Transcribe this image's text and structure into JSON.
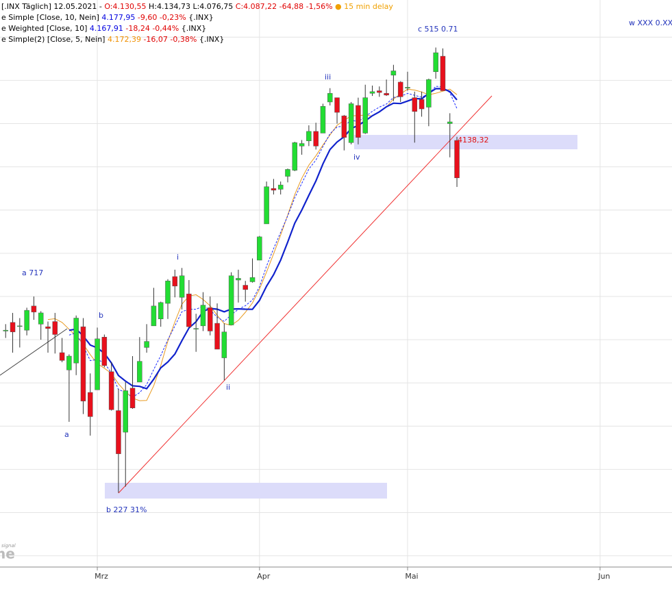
{
  "chart_data": {
    "type": "candlestick",
    "legend": [
      [
        {
          "text": "[.INX Täglich] 12.05.2021 -",
          "color": "#000000"
        },
        {
          "text": "O:4.130,55",
          "color": "#e00000"
        },
        {
          "text": "H:4.134,73",
          "color": "#000000"
        },
        {
          "text": "L:4.076,75",
          "color": "#000000"
        },
        {
          "text": "C:4.087,22 -64,88 -1,56%",
          "color": "#e00000"
        },
        {
          "text": "● 15 min delay",
          "color": "#f0a000"
        }
      ],
      [
        {
          "text": "e Simple [Close, 10, Nein]",
          "color": "#000000"
        },
        {
          "text": "4.177,95",
          "color": "#0000e0"
        },
        {
          "text": "-9,60 -0,23%",
          "color": "#e00000"
        },
        {
          "text": "{.INX}",
          "color": "#000000"
        }
      ],
      [
        {
          "text": "e Weighted [Close, 10]",
          "color": "#000000"
        },
        {
          "text": "4.167,91",
          "color": "#0000e0"
        },
        {
          "text": "-18,24 -0,44%",
          "color": "#e00000"
        },
        {
          "text": "{.INX}",
          "color": "#000000"
        }
      ],
      [
        {
          "text": "e Simple(2) [Close, 5, Nein]",
          "color": "#000000"
        },
        {
          "text": "4.172,39",
          "color": "#f09000"
        },
        {
          "text": "-16,07 -0,38%",
          "color": "#e00000"
        },
        {
          "text": "{.INX}",
          "color": "#000000"
        }
      ]
    ],
    "annotations": [
      "a 717",
      "b",
      "a",
      "b 227 31%",
      "i",
      "ii",
      "iii",
      "iv",
      "c 515 0.71",
      "w XXX 0.XX"
    ],
    "level_label": "4138,32",
    "watermark": [
      "signal",
      "ne"
    ],
    "open": [
      3910,
      3920,
      3916,
      3911,
      3939,
      3918,
      3915,
      3921,
      3885,
      3865,
      3873,
      3915,
      3839,
      3842,
      3903,
      3863,
      3818,
      3793,
      3844,
      3851,
      3891,
      3916,
      3924,
      3942,
      3973,
      3949,
      3953,
      3913,
      3916,
      3937,
      3919,
      3879,
      3917,
      3969,
      3963,
      3967,
      3992,
      4034,
      4075,
      4074,
      4089,
      4096,
      4124,
      4130,
      4141,
      4139,
      4175,
      4180,
      4159,
      4128,
      4171,
      4139,
      4185,
      4188,
      4185,
      4206,
      4198,
      4191,
      4180,
      4178,
      4169,
      4210,
      4228,
      4150,
      4130.55
    ],
    "high": [
      3918,
      3931,
      3925,
      3937,
      3950,
      3933,
      3921,
      3931,
      3902,
      3883,
      3928,
      3925,
      3861,
      3914,
      3906,
      3874,
      3843,
      3851,
      3881,
      3903,
      3918,
      3960,
      3944,
      3970,
      3981,
      3983,
      3969,
      3930,
      3955,
      3950,
      3942,
      3919,
      3978,
      3981,
      3968,
      3994,
      4020,
      4083,
      4086,
      4083,
      4098,
      4129,
      4131,
      4148,
      4151,
      4173,
      4191,
      4180,
      4160,
      4175,
      4180,
      4195,
      4194,
      4193,
      4201,
      4218,
      4199,
      4210,
      4187,
      4187,
      4202,
      4238,
      4237,
      4162,
      4134.73
    ],
    "low": [
      3902,
      3885,
      3891,
      3905,
      3923,
      3900,
      3885,
      3884,
      3874,
      3805,
      3859,
      3814,
      3789,
      3842,
      3868,
      3818,
      3723,
      3730,
      3820,
      3851,
      3885,
      3916,
      3915,
      3924,
      3949,
      3935,
      3914,
      3886,
      3910,
      3905,
      3889,
      3853,
      3917,
      3943,
      3944,
      3966,
      3992,
      4034,
      4068,
      4068,
      4082,
      4095,
      4114,
      4124,
      4120,
      4139,
      4171,
      4150,
      4119,
      4126,
      4126,
      4138,
      4182,
      4181,
      4182,
      4176,
      4175,
      4188,
      4128,
      4158,
      4147,
      4202,
      4188,
      4111,
      4076.75
    ],
    "close": [
      3911,
      3909,
      3916,
      3934,
      3932,
      3931,
      3913,
      3906,
      3876,
      3881,
      3925,
      3829,
      3811,
      3901,
      3870,
      3819,
      3768,
      3841,
      3821,
      3875,
      3898,
      3939,
      3943,
      3968,
      3962,
      3974,
      3915,
      3913,
      3940,
      3910,
      3889,
      3909,
      3974,
      3971,
      3958,
      3972,
      4019,
      4077,
      4073,
      4079,
      4097,
      4128,
      4127,
      4141,
      4124,
      4170,
      4185,
      4163,
      4134,
      4173,
      4134,
      4180,
      4187,
      4186,
      4183,
      4211,
      4181,
      4192,
      4164,
      4167,
      4201,
      4232,
      4188,
      4152,
      4087.22
    ],
    "up_color": "#22dd33",
    "down_color": "#e8101c",
    "ylim": [
      3637,
      4293
    ],
    "yticks": [
      3650,
      3700,
      3750,
      3800,
      3850,
      3900,
      3950,
      4000,
      4050,
      4100,
      4150,
      4200,
      4250
    ],
    "xlim": [
      -0.8,
      94.5
    ],
    "xticks": [
      {
        "value": 13,
        "label": "Mrz"
      },
      {
        "value": 36,
        "label": "Apr"
      },
      {
        "value": 57,
        "label": "Mai"
      },
      {
        "value": 84.3,
        "label": "Jun"
      }
    ],
    "grid": true
  }
}
